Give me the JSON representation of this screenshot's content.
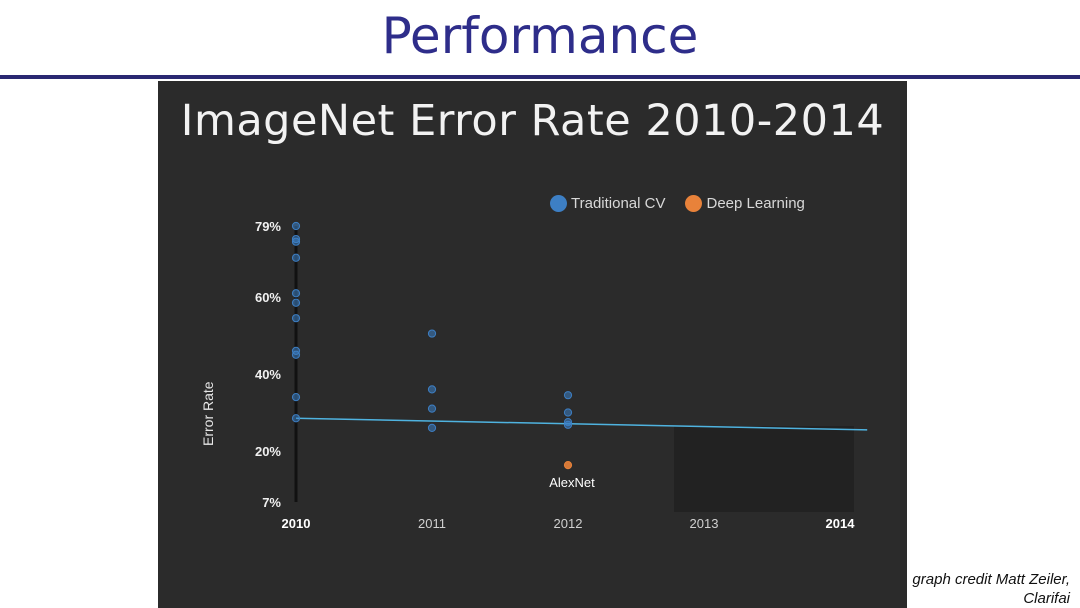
{
  "slide": {
    "title": "Performance",
    "credit": "graph credit Matt Zeiler, Clarifai"
  },
  "chart_data": {
    "type": "scatter",
    "title": "ImageNet Error Rate 2010-2014",
    "xlabel": "",
    "ylabel": "Error Rate",
    "x_ticks": [
      "2010",
      "2011",
      "2012",
      "2013",
      "2014"
    ],
    "y_ticks": [
      "7%",
      "20%",
      "40%",
      "60%",
      "79%"
    ],
    "y_tick_values": [
      7,
      20,
      40,
      60,
      79
    ],
    "ylim": [
      7,
      79
    ],
    "legend_position": "top-right",
    "series": [
      {
        "name": "Traditional CV",
        "color": "#3d7fc4",
        "points": [
          {
            "x": 2010,
            "y": 79
          },
          {
            "x": 2010,
            "y": 75.5
          },
          {
            "x": 2010,
            "y": 74.8
          },
          {
            "x": 2010,
            "y": 70.5
          },
          {
            "x": 2010,
            "y": 61
          },
          {
            "x": 2010,
            "y": 58.5
          },
          {
            "x": 2010,
            "y": 54.5
          },
          {
            "x": 2010,
            "y": 46
          },
          {
            "x": 2010,
            "y": 45
          },
          {
            "x": 2010,
            "y": 34
          },
          {
            "x": 2010,
            "y": 28.5
          },
          {
            "x": 2011,
            "y": 50.5
          },
          {
            "x": 2011,
            "y": 36
          },
          {
            "x": 2011,
            "y": 31
          },
          {
            "x": 2011,
            "y": 26
          },
          {
            "x": 2012,
            "y": 34.5
          },
          {
            "x": 2012,
            "y": 30
          },
          {
            "x": 2012,
            "y": 27.5
          },
          {
            "x": 2012,
            "y": 26.8
          }
        ]
      },
      {
        "name": "Deep Learning",
        "color": "#e8823a",
        "points": [
          {
            "x": 2012,
            "y": 16.4,
            "label": "AlexNet"
          }
        ]
      }
    ],
    "trend_line": {
      "color": "#4fb3e0",
      "from": {
        "x": 2010,
        "y": 28.5
      },
      "to": {
        "x": 2014.2,
        "y": 25.5
      }
    }
  }
}
